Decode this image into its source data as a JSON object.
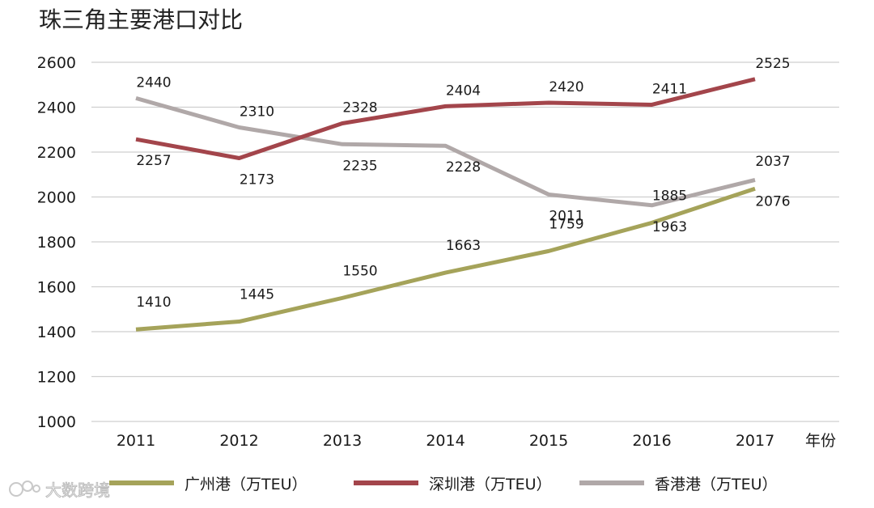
{
  "chart_data": {
    "type": "line",
    "title": "珠三角主要港口对比",
    "xlabel": "年份",
    "ylabel": "",
    "x": [
      "2011",
      "2012",
      "2013",
      "2014",
      "2015",
      "2016",
      "2017"
    ],
    "ylim": [
      1000,
      2600
    ],
    "yticks": [
      1000,
      1200,
      1400,
      1600,
      1800,
      2000,
      2200,
      2400,
      2600
    ],
    "grid": true,
    "legend_position": "bottom",
    "series": [
      {
        "name": "广州港（万TEU）",
        "color": "#a5a35a",
        "values": [
          1410,
          1445,
          1550,
          1663,
          1759,
          1885,
          2037
        ]
      },
      {
        "name": "深圳港（万TEU）",
        "color": "#a3454b",
        "values": [
          2257,
          2173,
          2328,
          2404,
          2420,
          2411,
          2525
        ]
      },
      {
        "name": "香港港（万TEU）",
        "color": "#b0a8a8",
        "values": [
          2440,
          2310,
          2235,
          2228,
          2011,
          1963,
          2076
        ]
      }
    ]
  },
  "watermark": {
    "text": "大数跨境"
  }
}
